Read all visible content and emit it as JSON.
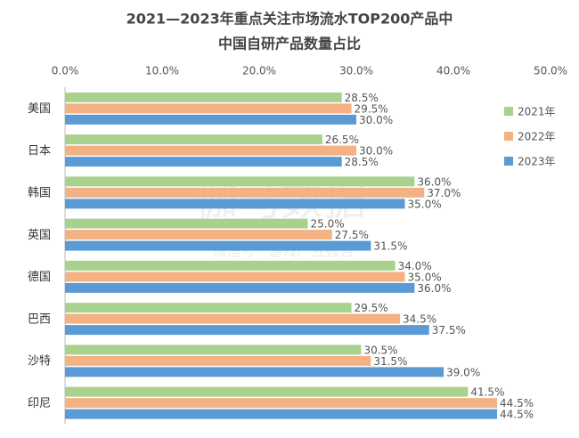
{
  "chart_data": {
    "type": "hbar",
    "title": "2021—2023年重点关注市场流水TOP200产品中",
    "subtitle": "中国自研产品数量占比",
    "watermark": "伽马数据",
    "watermark_sub": "微信号 · 游戏产业报告",
    "categories": [
      "美国",
      "日本",
      "韩国",
      "英国",
      "德国",
      "巴西",
      "沙特",
      "印尼"
    ],
    "series": [
      {
        "name": "2021年",
        "color": "#a9d18e",
        "values": [
          28.5,
          26.5,
          36.0,
          25.0,
          34.0,
          29.5,
          30.5,
          41.5
        ],
        "value_labels": [
          "28.5%",
          "26.5%",
          "36.0%",
          "25.0%",
          "34.0%",
          "29.5%",
          "30.5%",
          "41.5%"
        ]
      },
      {
        "name": "2022年",
        "color": "#f4b183",
        "values": [
          29.5,
          30.0,
          37.0,
          27.5,
          35.0,
          34.5,
          31.5,
          44.5
        ],
        "value_labels": [
          "29.5%",
          "30.0%",
          "37.0%",
          "27.5%",
          "35.0%",
          "34.5%",
          "31.5%",
          "44.5%"
        ]
      },
      {
        "name": "2023年",
        "color": "#5b9bd5",
        "values": [
          30.0,
          28.5,
          35.0,
          31.5,
          36.0,
          37.5,
          39.0,
          44.5
        ],
        "value_labels": [
          "30.0%",
          "28.5%",
          "35.0%",
          "31.5%",
          "36.0%",
          "37.5%",
          "39.0%",
          "44.5%"
        ]
      }
    ],
    "xlim": [
      0,
      50
    ],
    "xticks": [
      {
        "value": 0,
        "label": "0.0%"
      },
      {
        "value": 10,
        "label": "10.0%"
      },
      {
        "value": 20,
        "label": "20.0%"
      },
      {
        "value": 30,
        "label": "30.0%"
      },
      {
        "value": 40,
        "label": "40.0%"
      },
      {
        "value": 50,
        "label": "50.0%"
      }
    ],
    "grid": false,
    "legend": "right"
  }
}
